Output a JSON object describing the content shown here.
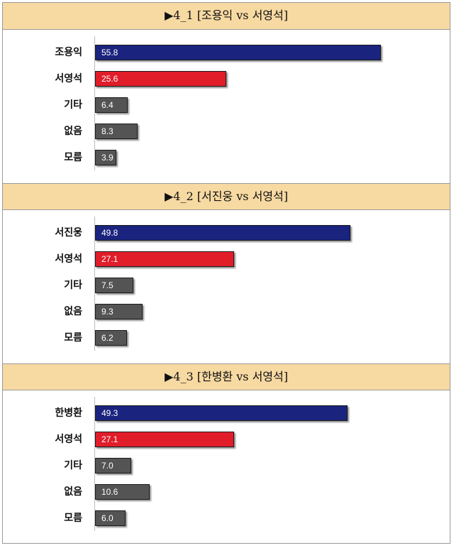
{
  "chart_data": [
    {
      "type": "bar",
      "title": "▶4_1 [조용익 vs 서영석]",
      "categories": [
        "조용익",
        "서영석",
        "기타",
        "없음",
        "모름"
      ],
      "values": [
        55.8,
        25.6,
        6.4,
        8.3,
        3.9
      ],
      "colors": [
        "#1a237e",
        "#e11d2a",
        "#545454",
        "#545454",
        "#545454"
      ]
    },
    {
      "type": "bar",
      "title": "▶4_2 [서진웅 vs 서영석]",
      "categories": [
        "서진웅",
        "서영석",
        "기타",
        "없음",
        "모름"
      ],
      "values": [
        49.8,
        27.1,
        7.5,
        9.3,
        6.2
      ],
      "colors": [
        "#1a237e",
        "#e11d2a",
        "#545454",
        "#545454",
        "#545454"
      ]
    },
    {
      "type": "bar",
      "title": "▶4_3 [한병환 vs 서영석]",
      "categories": [
        "한병환",
        "서영석",
        "기타",
        "없음",
        "모름"
      ],
      "values": [
        49.3,
        27.1,
        7.0,
        10.6,
        6.0
      ],
      "colors": [
        "#1a237e",
        "#e11d2a",
        "#545454",
        "#545454",
        "#545454"
      ]
    }
  ]
}
